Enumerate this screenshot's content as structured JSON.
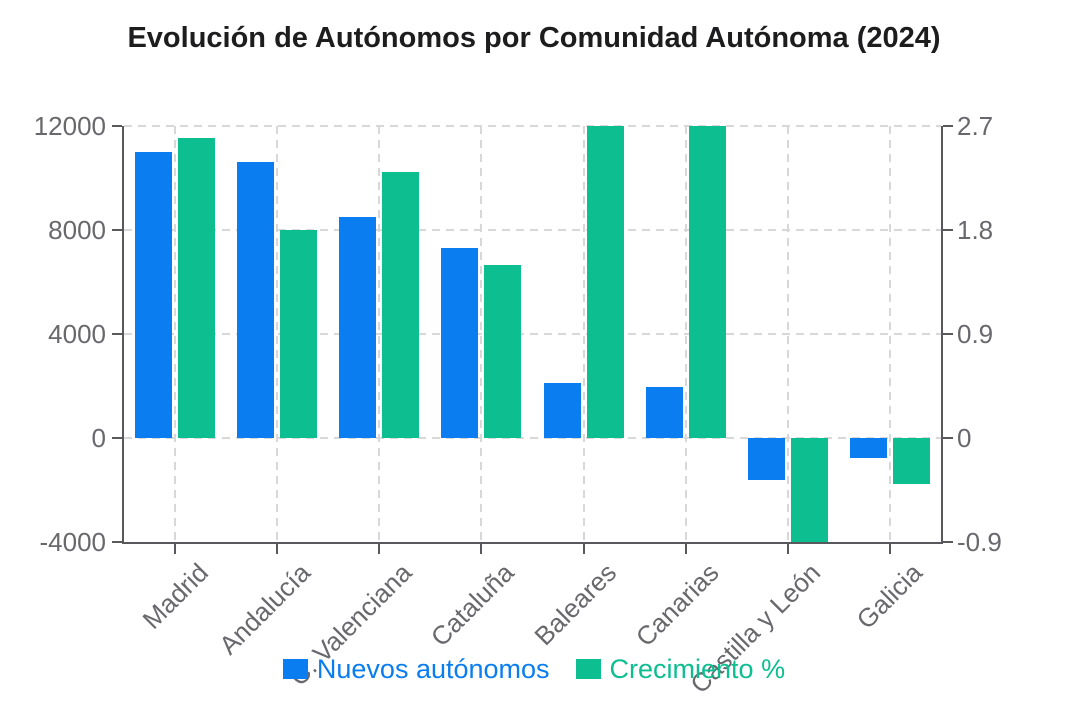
{
  "title": "Evolución de Autónomos por Comunidad Autónoma (2024)",
  "chart_data": {
    "type": "bar",
    "title": "Evolución de Autónomos por Comunidad Autónoma (2024)",
    "categories": [
      "Madrid",
      "Andalucía",
      "C. Valenciana",
      "Cataluña",
      "Baleares",
      "Canarias",
      "Castilla y León",
      "Galicia"
    ],
    "series": [
      {
        "name": "Nuevos autónomos",
        "axis": "left",
        "color": "#0A7DF0",
        "values": [
          11000,
          10600,
          8500,
          7300,
          2100,
          1950,
          -1600,
          -750
        ]
      },
      {
        "name": "Crecimiento %",
        "axis": "right",
        "color": "#0DBE91",
        "values": [
          2.6,
          1.8,
          2.3,
          1.5,
          2.7,
          2.7,
          -0.9,
          -0.4
        ]
      }
    ],
    "left_axis": {
      "ticks": [
        12000,
        8000,
        4000,
        0,
        -4000
      ],
      "min": -4000,
      "max": 12000
    },
    "right_axis": {
      "ticks": [
        2.7,
        1.8,
        0.9,
        0,
        -0.9
      ],
      "min": -0.9,
      "max": 2.7
    },
    "grid": "dashed",
    "legend_position": "bottom",
    "x_label_rotation": -45
  },
  "colors": {
    "background": "#ffffff",
    "title_text": "#1d1d1f",
    "axis_line": "#59595d",
    "tick_text": "#68686d",
    "gridline": "#d8d8d8",
    "series_blue": "#0A7DF0",
    "series_green": "#0DBE91"
  }
}
